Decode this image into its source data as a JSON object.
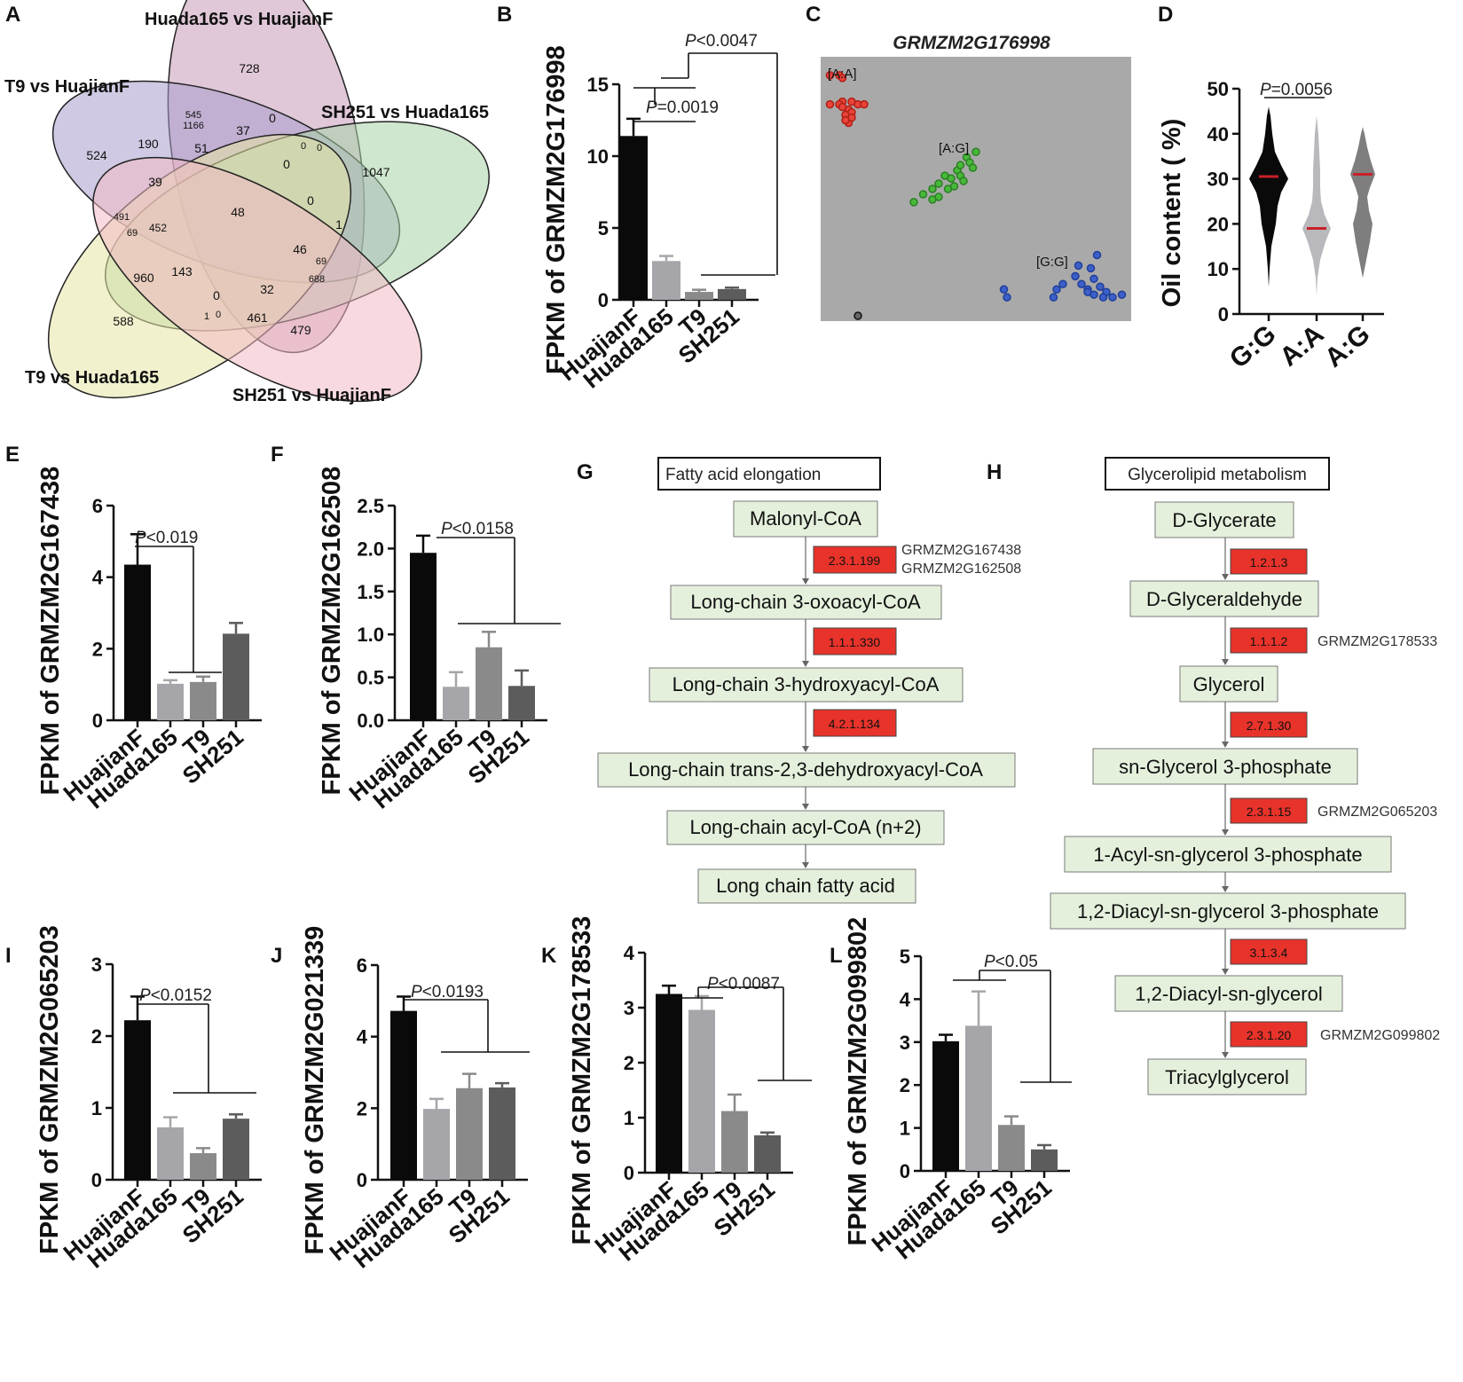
{
  "colors": {
    "huajianf": "#0a0a0a",
    "huada165": "#a6a6aa",
    "t9": "#8a8a8a",
    "sh251": "#5c5c5c",
    "enzyme_box": "#e8332a",
    "compound_box": "#e4f0dc",
    "scatter_bg": "#a9a9a9",
    "aa_points": "#e8443a",
    "ag_points": "#48b83a",
    "gg_points": "#3d5fc8",
    "mean_line": "#c8202a"
  },
  "panel_letters": [
    "A",
    "B",
    "C",
    "D",
    "E",
    "F",
    "G",
    "H",
    "I",
    "J",
    "K",
    "L"
  ],
  "venn": {
    "sets": [
      {
        "name": "Huada165 vs HuajianF",
        "color": "#c79bb8"
      },
      {
        "name": "T9 vs HuajianF",
        "color": "#a89ccc"
      },
      {
        "name": "SH251 vs Huada165",
        "color": "#a9d4a8"
      },
      {
        "name": "T9 vs Huada165",
        "color": "#e8e6a6"
      },
      {
        "name": "SH251 vs HuajianF",
        "color": "#f2b9c4"
      }
    ],
    "counts": [
      "728",
      "545",
      "1166",
      "37",
      "0",
      "524",
      "190",
      "51",
      "0",
      "0",
      "1047",
      "39",
      "0",
      "48",
      "491",
      "69",
      "452",
      "0",
      "1",
      "46",
      "69",
      "688",
      "960",
      "143",
      "32",
      "0",
      "1",
      "0",
      "461",
      "588",
      "479"
    ]
  },
  "chart_data": [
    {
      "panel": "B",
      "type": "bar",
      "ylabel": "FPKM of GRMZM2G176998",
      "categories": [
        "HuajianF",
        "Huada165",
        "T9",
        "SH251"
      ],
      "values": [
        11.4,
        2.7,
        0.55,
        0.75
      ],
      "errors": [
        1.2,
        0.35,
        0.15,
        0.1
      ],
      "ylim": [
        0,
        15
      ],
      "yticks": [
        "0",
        "5",
        "10",
        "15"
      ],
      "ytick_values": [
        0,
        5,
        10,
        15
      ],
      "pvalues": [
        {
          "label": "=0.0019",
          "prefix": "P"
        },
        {
          "label": "<0.0047",
          "prefix": "P"
        }
      ]
    },
    {
      "panel": "C",
      "type": "scatter",
      "title": "GRMZM2G176998",
      "clusters": [
        {
          "label": "[A:A]",
          "points": [
            [
              0.03,
              0.93
            ],
            [
              0.06,
              0.93
            ],
            [
              0.07,
              0.92
            ],
            [
              0.03,
              0.82
            ],
            [
              0.07,
              0.83
            ],
            [
              0.09,
              0.8
            ],
            [
              0.1,
              0.83
            ],
            [
              0.12,
              0.82
            ],
            [
              0.08,
              0.78
            ],
            [
              0.09,
              0.75
            ],
            [
              0.1,
              0.79
            ],
            [
              0.06,
              0.82
            ],
            [
              0.07,
              0.81
            ],
            [
              0.1,
              0.77
            ],
            [
              0.08,
              0.76
            ],
            [
              0.14,
              0.82
            ]
          ]
        },
        {
          "label": "[A:G]",
          "points": [
            [
              0.3,
              0.45
            ],
            [
              0.33,
              0.48
            ],
            [
              0.36,
              0.5
            ],
            [
              0.38,
              0.52
            ],
            [
              0.4,
              0.55
            ],
            [
              0.42,
              0.54
            ],
            [
              0.44,
              0.57
            ],
            [
              0.45,
              0.59
            ],
            [
              0.47,
              0.62
            ],
            [
              0.48,
              0.6
            ],
            [
              0.5,
              0.64
            ],
            [
              0.41,
              0.5
            ],
            [
              0.43,
              0.51
            ],
            [
              0.45,
              0.55
            ],
            [
              0.38,
              0.47
            ],
            [
              0.36,
              0.46
            ],
            [
              0.49,
              0.58
            ],
            [
              0.46,
              0.53
            ]
          ]
        },
        {
          "label": "[G:G]",
          "points": [
            [
              0.59,
              0.12
            ],
            [
              0.6,
              0.09
            ],
            [
              0.76,
              0.12
            ],
            [
              0.78,
              0.14
            ],
            [
              0.75,
              0.09
            ],
            [
              0.82,
              0.17
            ],
            [
              0.84,
              0.14
            ],
            [
              0.86,
              0.12
            ],
            [
              0.88,
              0.1
            ],
            [
              0.9,
              0.13
            ],
            [
              0.92,
              0.11
            ],
            [
              0.94,
              0.09
            ],
            [
              0.97,
              0.1
            ],
            [
              0.88,
              0.16
            ],
            [
              0.87,
              0.2
            ],
            [
              0.83,
              0.21
            ],
            [
              0.89,
              0.25
            ],
            [
              0.86,
              0.11
            ],
            [
              0.91,
              0.09
            ]
          ]
        },
        {
          "label": "",
          "points": [
            [
              0.12,
              0.02
            ]
          ]
        }
      ]
    },
    {
      "panel": "D",
      "type": "violin",
      "ylabel": "Oil content ( %)",
      "categories": [
        "G:G",
        "A:A",
        "A:G"
      ],
      "medians": [
        30.5,
        19,
        31
      ],
      "ylim": [
        0,
        50
      ],
      "yticks": [
        "0",
        "10",
        "20",
        "30",
        "40",
        "50"
      ],
      "ytick_values": [
        0,
        10,
        20,
        30,
        40,
        50
      ],
      "pvalues": [
        {
          "label": "=0.0056",
          "prefix": "P"
        }
      ]
    },
    {
      "panel": "E",
      "type": "bar",
      "ylabel": "FPKM of GRMZM2G167438",
      "categories": [
        "HuajianF",
        "Huada165",
        "T9",
        "SH251"
      ],
      "values": [
        4.35,
        1.02,
        1.07,
        2.42
      ],
      "errors": [
        0.85,
        0.1,
        0.15,
        0.3
      ],
      "ylim": [
        0,
        6
      ],
      "yticks": [
        "0",
        "2",
        "4",
        "6"
      ],
      "ytick_values": [
        0,
        2,
        4,
        6
      ],
      "pvalues": [
        {
          "label": "<0.019",
          "prefix": "P"
        }
      ]
    },
    {
      "panel": "F",
      "type": "bar",
      "ylabel": "FPKM of GRMZM2G162508",
      "categories": [
        "HuajianF",
        "Huada165",
        "T9",
        "SH251"
      ],
      "values": [
        1.95,
        0.39,
        0.85,
        0.4
      ],
      "errors": [
        0.2,
        0.17,
        0.18,
        0.18
      ],
      "ylim": [
        0,
        2.5
      ],
      "yticks": [
        "0.0",
        "0.5",
        "1.0",
        "1.5",
        "2.0",
        "2.5"
      ],
      "ytick_values": [
        0,
        0.5,
        1,
        1.5,
        2,
        2.5
      ],
      "pvalues": [
        {
          "label": "<0.0158",
          "prefix": "P"
        }
      ]
    },
    {
      "panel": "I",
      "type": "bar",
      "ylabel": "FPKM of GRMZM2G065203",
      "categories": [
        "HuajianF",
        "Huada165",
        "T9",
        "SH251"
      ],
      "values": [
        2.22,
        0.73,
        0.37,
        0.85
      ],
      "errors": [
        0.33,
        0.14,
        0.07,
        0.06
      ],
      "ylim": [
        0,
        3
      ],
      "yticks": [
        "0",
        "1",
        "2",
        "3"
      ],
      "ytick_values": [
        0,
        1,
        2,
        3
      ],
      "pvalues": [
        {
          "label": "<0.0152",
          "prefix": "P"
        }
      ]
    },
    {
      "panel": "J",
      "type": "bar",
      "ylabel": "FPKM of GRMZM2G021339",
      "categories": [
        "HuajianF",
        "Huada165",
        "T9",
        "SH251"
      ],
      "values": [
        4.72,
        1.98,
        2.56,
        2.58
      ],
      "errors": [
        0.4,
        0.28,
        0.4,
        0.12
      ],
      "ylim": [
        0,
        6
      ],
      "yticks": [
        "0",
        "2",
        "4",
        "6"
      ],
      "ytick_values": [
        0,
        2,
        4,
        6
      ],
      "pvalues": [
        {
          "label": "<0.0193",
          "prefix": "P"
        }
      ]
    },
    {
      "panel": "K",
      "type": "bar",
      "ylabel": "FPKM of GRMZM2G178533",
      "categories": [
        "HuajianF",
        "Huada165",
        "T9",
        "SH251"
      ],
      "values": [
        3.25,
        2.96,
        1.12,
        0.68
      ],
      "errors": [
        0.15,
        0.25,
        0.3,
        0.05
      ],
      "ylim": [
        0,
        4
      ],
      "yticks": [
        "0",
        "1",
        "2",
        "3",
        "4"
      ],
      "ytick_values": [
        0,
        1,
        2,
        3,
        4
      ],
      "pvalues": [
        {
          "label": "<0.0087",
          "prefix": "P"
        }
      ]
    },
    {
      "panel": "L",
      "type": "bar",
      "ylabel": "FPKM of GRMZM2G099802",
      "categories": [
        "HuajianF",
        "Huada165",
        "T9",
        "SH251"
      ],
      "values": [
        3.02,
        3.38,
        1.07,
        0.5
      ],
      "errors": [
        0.15,
        0.8,
        0.2,
        0.1
      ],
      "ylim": [
        0,
        5
      ],
      "yticks": [
        "0",
        "1",
        "2",
        "3",
        "4",
        "5"
      ],
      "ytick_values": [
        0,
        1,
        2,
        3,
        4,
        5
      ],
      "pvalues": [
        {
          "label": "<0.05",
          "prefix": "P"
        }
      ]
    }
  ],
  "pathway_g": {
    "title": "Fatty acid elongation",
    "compounds": [
      "Malonyl-CoA",
      "Long-chain 3-oxoacyl-CoA",
      "Long-chain 3-hydroxyacyl-CoA",
      "Long-chain trans-2,3-dehydroxyacyl-CoA",
      "Long-chain acyl-CoA (n+2)",
      "Long chain fatty acid"
    ],
    "enzymes": [
      "2.3.1.199",
      "1.1.1.330",
      "4.2.1.134"
    ],
    "genes": [
      "GRMZM2G167438",
      "GRMZM2G162508"
    ]
  },
  "pathway_h": {
    "title": "Glycerolipid metabolism",
    "compounds": [
      "D-Glycerate",
      "D-Glyceraldehyde",
      "Glycerol",
      "sn-Glycerol 3-phosphate",
      "1-Acyl-sn-glycerol 3-phosphate",
      "1,2-Diacyl-sn-glycerol 3-phosphate",
      "1,2-Diacyl-sn-glycerol",
      "Triacylglycerol"
    ],
    "enzymes": [
      "1.2.1.3",
      "1.1.1.2",
      "2.7.1.30",
      "2.3.1.15",
      "3.1.3.4",
      "2.3.1.20"
    ],
    "genes": [
      "GRMZM2G178533",
      "GRMZM2G065203",
      "GRMZM2G099802"
    ]
  }
}
